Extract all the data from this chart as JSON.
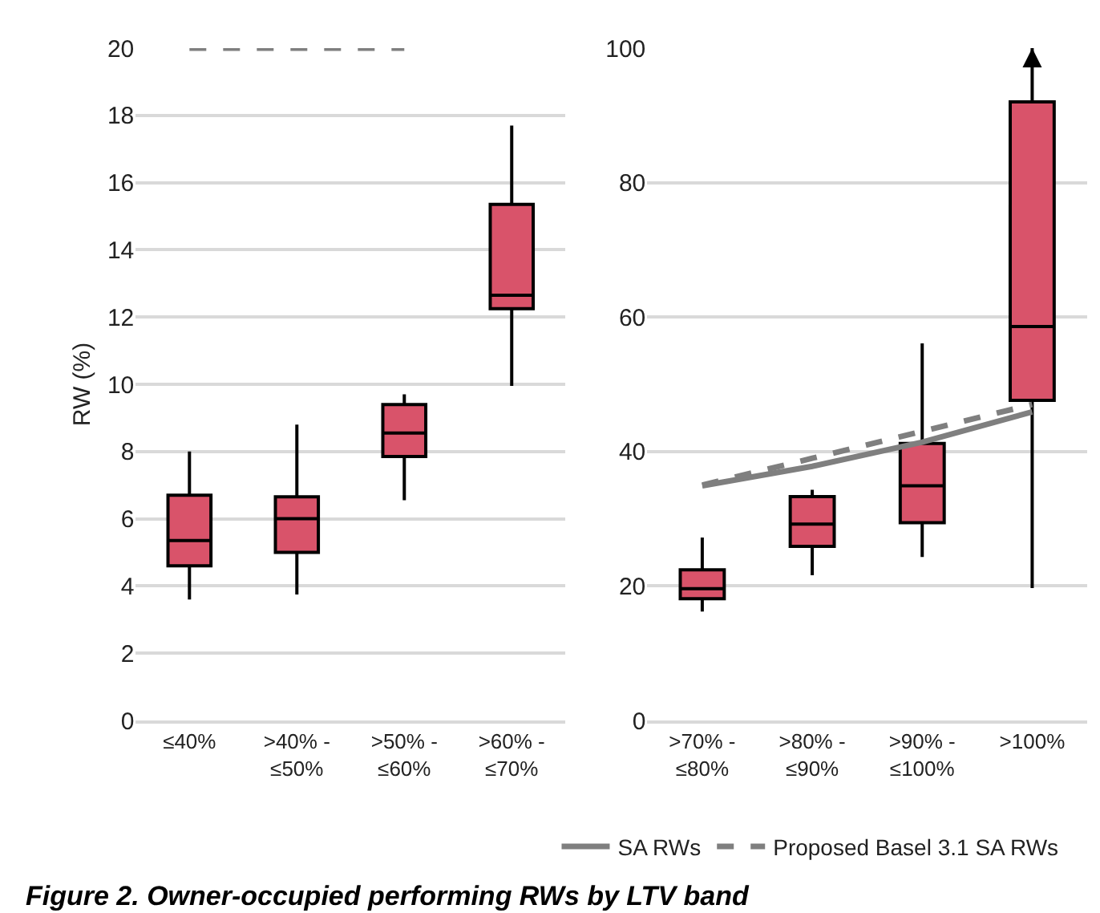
{
  "chart_data": [
    {
      "type": "box",
      "title": "Figure 2. Owner-occupied performing RWs by LTV band",
      "ylabel": "RW (%)",
      "categories": [
        "≤40%",
        ">40% -\n≤50%",
        ">50% -\n≤60%",
        ">60% -\n≤70%"
      ],
      "boxes": [
        {
          "low": 3.6,
          "q1": 4.6,
          "median": 5.35,
          "q3": 6.7,
          "high": 8.0
        },
        {
          "low": 3.75,
          "q1": 5.0,
          "median": 6.0,
          "q3": 6.65,
          "high": 8.8
        },
        {
          "low": 6.55,
          "q1": 7.85,
          "median": 8.55,
          "q3": 9.4,
          "high": 9.7
        },
        {
          "low": 9.95,
          "q1": 12.25,
          "median": 12.65,
          "q3": 15.35,
          "high": 17.7
        }
      ],
      "color": "#d9536a",
      "series": [
        {
          "type": "line",
          "name": "Proposed Basel 3.1 SA RWs",
          "color": "#7f7f7f",
          "line_style": "dashed",
          "values": [
            20,
            20,
            20,
            null
          ]
        }
      ],
      "ylim": [
        0,
        20
      ],
      "yticks": [
        0,
        2,
        4,
        6,
        8,
        10,
        12,
        14,
        16,
        18,
        20
      ],
      "grid": "y",
      "legend": "bottom"
    },
    {
      "type": "box",
      "categories": [
        ">70% -\n≤80%",
        ">80% -\n≤90%",
        ">90% -\n≤100%",
        ">100%"
      ],
      "boxes": [
        {
          "low": 16.2,
          "q1": 18.1,
          "median": 19.6,
          "q3": 22.4,
          "high": 27.2
        },
        {
          "low": 21.6,
          "q1": 25.9,
          "median": 29.2,
          "q3": 33.3,
          "high": 34.3
        },
        {
          "low": 24.3,
          "q1": 29.4,
          "median": 34.9,
          "q3": 41.2,
          "high": 56.1
        },
        {
          "low": 19.7,
          "q1": 47.6,
          "median": 58.6,
          "q3": 92,
          "high": 100
        }
      ],
      "color": "#d9536a",
      "series": [
        {
          "type": "line",
          "name": "SA RWs",
          "color": "#7f7f7f",
          "line_style": "solid",
          "values": [
            34.9,
            37.8,
            41.4,
            45.9
          ]
        },
        {
          "type": "line",
          "name": "Proposed Basel 3.1 SA RWs",
          "color": "#7f7f7f",
          "line_style": "dashed",
          "values": [
            35,
            39,
            43,
            47
          ]
        }
      ],
      "ylim": [
        0,
        100
      ],
      "yticks": [
        0,
        20,
        40,
        60,
        80,
        100
      ],
      "grid": "y",
      "legend": "bottom"
    }
  ]
}
